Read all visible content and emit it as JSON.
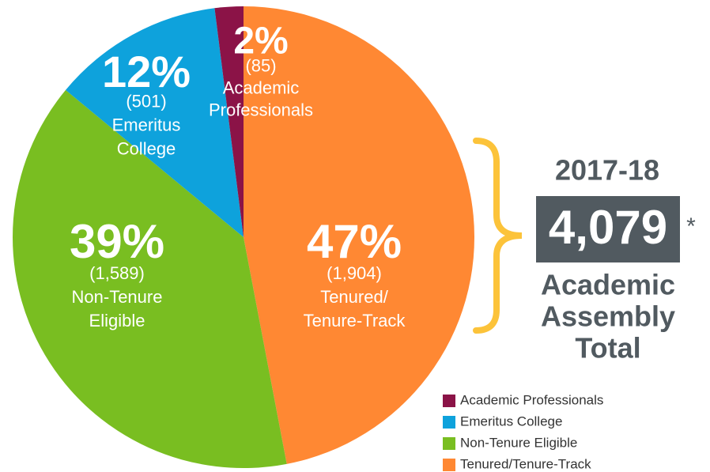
{
  "chart_data": {
    "type": "pie",
    "categories": [
      "Academic Professionals",
      "Emeritus College",
      "Non-Tenure Eligible",
      "Tenured/Tenure-Track"
    ],
    "values": [
      2,
      12,
      39,
      47
    ],
    "value_labels": [
      "2%",
      "12%",
      "39%",
      "47%"
    ],
    "counts": [
      85,
      501,
      1589,
      1904
    ],
    "count_labels": [
      "(85)",
      "(501)",
      "(1,589)",
      "(1,904)"
    ],
    "slice_labels": [
      [
        "Academic",
        "Professionals"
      ],
      [
        "Emeritus",
        "College"
      ],
      [
        "Non-Tenure",
        "Eligible"
      ],
      [
        "Tenured/",
        "Tenure-Track"
      ]
    ],
    "colors": [
      "#8b1347",
      "#0ea2dc",
      "#79be21",
      "#ff8833"
    ],
    "year": "2017-18",
    "total": {
      "value": 4079,
      "label": "4,079"
    },
    "total_note": "*",
    "total_caption": [
      "Academic",
      "Assembly",
      "Total"
    ],
    "legend": "bottom-right"
  }
}
